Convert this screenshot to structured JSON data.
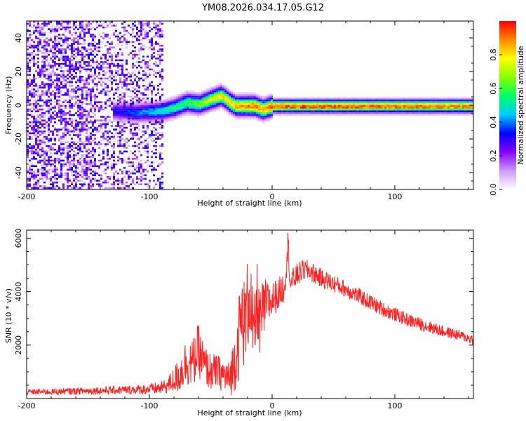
{
  "figure": {
    "title": "YM08.2026.034.17.05.G12"
  },
  "chart_data": [
    {
      "type": "heatmap",
      "name": "spectrogram",
      "xlabel": "Height of straight line (km)",
      "ylabel": "Frequency (Hz)",
      "xlim": [
        -200,
        164
      ],
      "ylim": [
        -50,
        50
      ],
      "xticks": [
        -200,
        -100,
        0,
        100
      ],
      "xtick_labels": [
        "-200",
        "-100",
        "0",
        "100"
      ],
      "yticks": [
        -40,
        -20,
        0,
        20,
        40
      ],
      "ytick_labels": [
        "-40",
        "-20",
        "0",
        "20",
        "40"
      ],
      "colorbar": {
        "label": "Normalized spectral amplitude",
        "range": [
          0,
          1
        ],
        "ticks": [
          0,
          0.2,
          0.4,
          0.6,
          0.8
        ],
        "tick_labels": [
          "0.0",
          "0.2",
          "0.4",
          "0.6",
          "0.8"
        ],
        "colormap": [
          "#ffffff",
          "#cc99ff",
          "#8800ff",
          "#0000ff",
          "#00ccff",
          "#00ff66",
          "#88ff00",
          "#ffff00",
          "#ff8800",
          "#ff0000"
        ]
      },
      "ridge": {
        "x": [
          -130,
          -110,
          -90,
          -80,
          -70,
          -60,
          -50,
          -42,
          -38,
          -35,
          -30,
          -25,
          -15,
          -8,
          -4,
          0,
          5,
          20,
          60,
          100,
          164
        ],
        "frequency": [
          -3,
          -4,
          -3,
          -1,
          2,
          1,
          4,
          6,
          4,
          2,
          0,
          0,
          0,
          -2,
          -1,
          0,
          0,
          0,
          0,
          0,
          0
        ],
        "peak_amplitude": [
          0.3,
          0.4,
          0.5,
          0.55,
          0.6,
          0.65,
          0.75,
          0.8,
          0.8,
          0.8,
          0.85,
          0.9,
          0.92,
          0.9,
          0.92,
          0.95,
          0.95,
          0.95,
          0.95,
          0.92,
          0.9
        ]
      },
      "noise_region": {
        "x": [
          -200,
          -90
        ],
        "amplitude": [
          0.05,
          0.35
        ]
      }
    },
    {
      "type": "line",
      "name": "snr",
      "xlabel": "Height of straight line (km)",
      "ylabel": "SNR (10 * v/v)",
      "xlim": [
        -200,
        164
      ],
      "ylim": [
        0,
        6300
      ],
      "xticks": [
        -200,
        -100,
        0,
        100
      ],
      "xtick_labels": [
        "-200",
        "-100",
        "0",
        "100"
      ],
      "yticks": [
        2000,
        4000,
        6000
      ],
      "ytick_labels": [
        "2000",
        "4000",
        "6000"
      ],
      "color": "#ff2020",
      "series": [
        {
          "name": "SNR",
          "x": [
            -200,
            -180,
            -160,
            -140,
            -120,
            -100,
            -90,
            -85,
            -80,
            -75,
            -70,
            -65,
            -60,
            -55,
            -50,
            -45,
            -40,
            -35,
            -30,
            -28,
            -25,
            -22,
            -20,
            -18,
            -15,
            -12,
            -10,
            -8,
            -5,
            -2,
            0,
            5,
            10,
            13,
            15,
            20,
            25,
            30,
            35,
            40,
            50,
            60,
            70,
            80,
            90,
            100,
            110,
            120,
            130,
            140,
            150,
            164
          ],
          "y": [
            250,
            250,
            280,
            300,
            320,
            350,
            400,
            500,
            700,
            900,
            1400,
            1300,
            1800,
            1200,
            1000,
            1000,
            900,
            700,
            1500,
            2000,
            3000,
            2800,
            3500,
            4000,
            2000,
            3800,
            2600,
            3200,
            3500,
            3600,
            3700,
            3900,
            4200,
            5800,
            4300,
            4600,
            4800,
            4800,
            4650,
            4500,
            4300,
            4100,
            3850,
            3600,
            3350,
            3150,
            2950,
            2800,
            2650,
            2500,
            2400,
            2200
          ],
          "envelope": [
            100,
            120,
            130,
            150,
            160,
            200,
            250,
            300,
            500,
            700,
            900,
            900,
            1000,
            800,
            700,
            650,
            650,
            700,
            1200,
            1500,
            1800,
            1700,
            1800,
            1800,
            1500,
            1500,
            1400,
            1200,
            1000,
            800,
            700,
            600,
            600,
            600,
            500,
            450,
            400,
            400,
            380,
            360,
            340,
            320,
            300,
            300,
            280,
            260,
            250,
            240,
            230,
            220,
            200,
            200
          ]
        }
      ]
    }
  ]
}
